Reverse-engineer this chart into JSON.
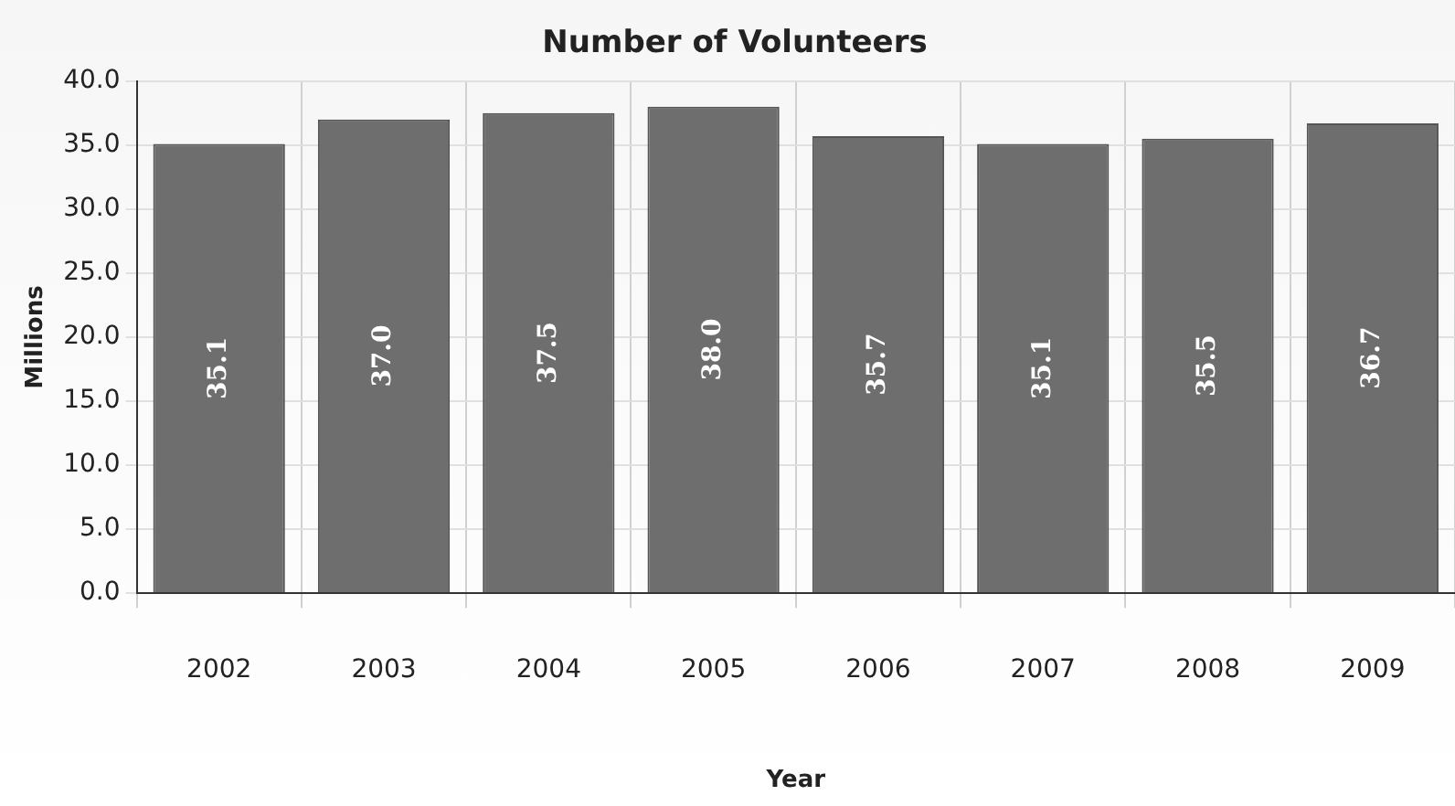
{
  "chart_data": {
    "type": "bar",
    "title": "Number of Volunteers",
    "xlabel": "Year",
    "ylabel": "Millions",
    "categories": [
      "2002",
      "2003",
      "2004",
      "2005",
      "2006",
      "2007",
      "2008",
      "2009"
    ],
    "values": [
      35.1,
      37.0,
      37.5,
      38.0,
      35.7,
      35.1,
      35.5,
      36.7
    ],
    "value_labels": [
      "35.1",
      "37.0",
      "37.5",
      "38.0",
      "35.7",
      "35.1",
      "35.5",
      "36.7"
    ],
    "color": "#6e6e6e",
    "ylim": [
      0,
      40
    ],
    "yticks": [
      {
        "value": 0,
        "label": "0.0"
      },
      {
        "value": 5,
        "label": "5.0"
      },
      {
        "value": 10,
        "label": "10.0"
      },
      {
        "value": 15,
        "label": "15.0"
      },
      {
        "value": 20,
        "label": "20.0"
      },
      {
        "value": 25,
        "label": "25.0"
      },
      {
        "value": 30,
        "label": "30.0"
      },
      {
        "value": 35,
        "label": "35.0"
      },
      {
        "value": 40,
        "label": "40.0"
      }
    ],
    "grid": true,
    "legend": false
  }
}
